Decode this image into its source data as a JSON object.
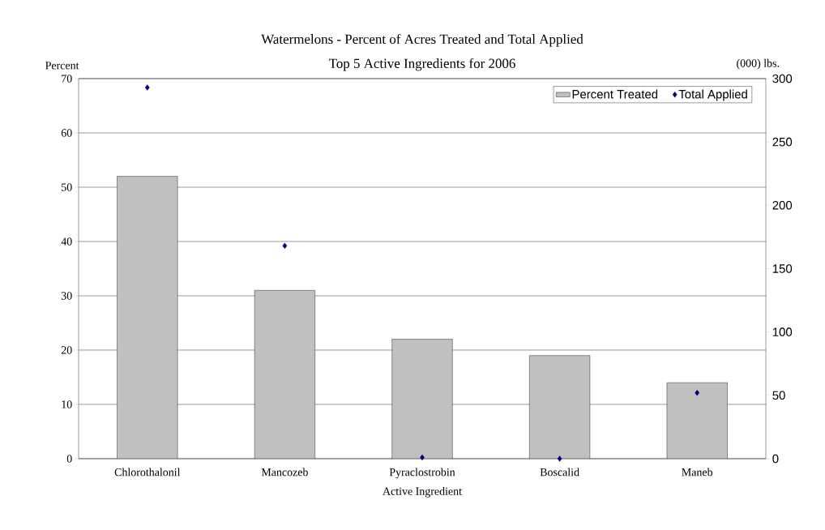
{
  "chart_data": {
    "type": "bar",
    "title": "Watermelons - Percent of Acres Treated and Total Applied",
    "subtitle": "Top 5 Active Ingredients for 2006",
    "xlabel": "Active Ingredient",
    "ylabel": "Percent",
    "y2label": "(000) lbs.",
    "categories": [
      "Chlorothalonil",
      "Mancozeb",
      "Pyraclostrobin",
      "Boscalid",
      "Maneb"
    ],
    "series": [
      {
        "name": "Percent Treated",
        "color": "#c0c0c0",
        "values": [
          52,
          31,
          22,
          19,
          14
        ]
      },
      {
        "name": "Total Applied",
        "type": "scatter",
        "axis": "y2",
        "color": "#000080",
        "values": [
          293,
          168,
          1,
          0,
          52
        ]
      }
    ],
    "ylim": [
      0,
      70
    ],
    "yticks": [
      0,
      10,
      20,
      30,
      40,
      50,
      60,
      70
    ],
    "y2lim": [
      0,
      300
    ],
    "y2ticks": [
      0,
      50,
      100,
      150,
      200,
      250,
      300
    ],
    "grid": "y",
    "legend": "top right",
    "marker": "diamond"
  }
}
